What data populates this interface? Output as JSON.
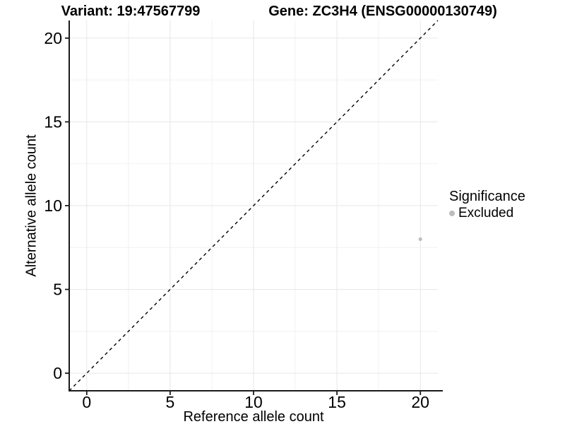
{
  "header": {
    "variant_title": "Variant: 19:47567799",
    "gene_title": "Gene: ZC3H4 (ENSG00000130749)"
  },
  "chart_data": {
    "type": "scatter",
    "titles": [
      "Variant: 19:47567799",
      "Gene: ZC3H4 (ENSG00000130749)"
    ],
    "xlabel": "Reference allele count",
    "ylabel": "Alternative allele count",
    "xlim": [
      0,
      20
    ],
    "ylim": [
      0,
      20
    ],
    "x_ticks": [
      0,
      5,
      10,
      15,
      20
    ],
    "y_ticks": [
      0,
      5,
      10,
      15,
      20
    ],
    "x_minor_ticks": [
      2.5,
      7.5,
      12.5,
      17.5
    ],
    "y_minor_ticks": [
      2.5,
      7.5,
      12.5,
      17.5
    ],
    "grid": true,
    "identity_line": {
      "style": "dashed",
      "color": "#000000",
      "from": [
        -1.05,
        -1.05
      ],
      "to": [
        21.05,
        21.05
      ]
    },
    "series": [
      {
        "name": "Excluded",
        "color": "#bdbdbd",
        "points": [
          {
            "x": 20,
            "y": 8
          }
        ]
      }
    ],
    "legend": {
      "title": "Significance",
      "position": "right",
      "entries": [
        {
          "label": "Excluded",
          "color": "#bdbdbd"
        }
      ]
    }
  },
  "colors": {
    "background": "#ffffff",
    "grid_major": "#e7e7e7",
    "grid_minor": "#f2f2f2",
    "axis_line": "#1a1a1a",
    "tick_text": "#000000",
    "point": "#bdbdbd"
  }
}
